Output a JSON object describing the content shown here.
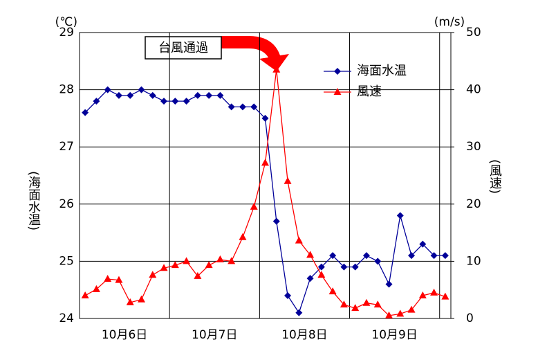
{
  "chart_data": {
    "type": "line",
    "y_unit": "(℃)",
    "y2_unit": "(m/s)",
    "ylabel": "(海面水温)",
    "y2label": "(風速)",
    "annotation": "台風通過",
    "categories": [
      null,
      null,
      null,
      null,
      "10月6日",
      null,
      null,
      null,
      null,
      null,
      null,
      null,
      "10月7日",
      null,
      null,
      null,
      null,
      null,
      null,
      null,
      "10月8日",
      null,
      null,
      null,
      null,
      null,
      null,
      null,
      "10月9日",
      null,
      null,
      null,
      null
    ],
    "series": [
      {
        "name": "海面水温",
        "color": "#000099",
        "marker": "diamond",
        "values": [
          27.6,
          27.8,
          28.0,
          27.9,
          27.9,
          28.0,
          27.9,
          27.8,
          27.8,
          27.8,
          27.9,
          27.9,
          27.9,
          27.7,
          27.7,
          27.7,
          27.5,
          25.7,
          24.4,
          24.1,
          24.7,
          24.9,
          25.1,
          24.9,
          24.9,
          25.1,
          25.0,
          24.6,
          25.8,
          25.1,
          25.3,
          25.1,
          25.1
        ]
      },
      {
        "name": "風速",
        "color": "#ff0000",
        "marker": "triangle",
        "axis": "y2",
        "values": [
          4.0,
          5.1,
          6.9,
          6.7,
          2.8,
          3.3,
          7.6,
          8.8,
          9.3,
          10.0,
          7.4,
          9.3,
          10.3,
          10.0,
          14.2,
          19.5,
          27.2,
          43.5,
          24.0,
          13.6,
          11.1,
          7.6,
          4.7,
          2.4,
          1.8,
          2.7,
          2.4,
          0.5,
          0.8,
          1.5,
          4.0,
          4.5,
          3.8
        ]
      }
    ],
    "ylim": [
      24,
      29
    ],
    "yticks": [
      24,
      25,
      26,
      27,
      28,
      29
    ],
    "y2lim": [
      0,
      50
    ],
    "y2ticks": [
      0,
      10,
      20,
      30,
      40,
      50
    ],
    "grid": true
  }
}
